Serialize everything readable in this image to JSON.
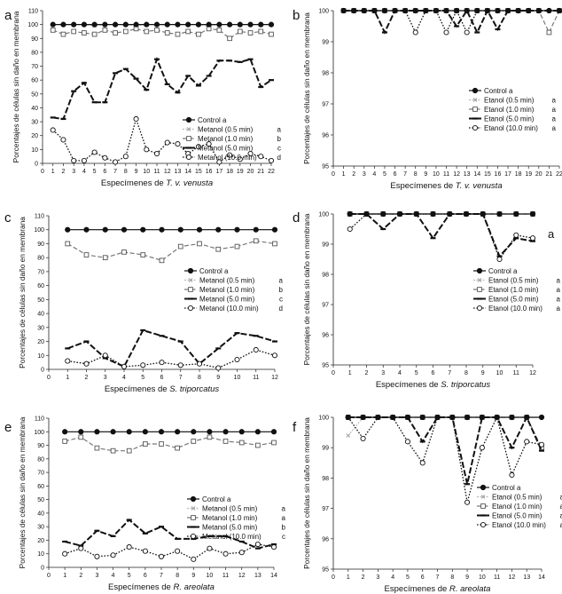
{
  "chart_data": [
    {
      "type": "line",
      "panel_label": "a",
      "ylabel": "Porcentajes de células sin daño en membrana",
      "xlabel_prefix": "Especímenes de ",
      "xlabel_species": "T. v. venusta",
      "ylim": [
        0,
        110
      ],
      "yticks": [
        0,
        10,
        20,
        30,
        40,
        50,
        60,
        70,
        80,
        90,
        100,
        110
      ],
      "xlim": [
        0,
        22
      ],
      "x": [
        1,
        2,
        3,
        4,
        5,
        6,
        7,
        8,
        9,
        10,
        11,
        12,
        13,
        14,
        15,
        16,
        17,
        18,
        19,
        20,
        21,
        22
      ],
      "legend_position": "right",
      "series": [
        {
          "name": "Control",
          "group": "a",
          "style": "control",
          "values": [
            100,
            100,
            100,
            100,
            100,
            100,
            100,
            100,
            100,
            100,
            100,
            100,
            100,
            100,
            100,
            100,
            100,
            100,
            100,
            100,
            100,
            100
          ]
        },
        {
          "name": "Metanol  (0.5 min)",
          "group": "a",
          "style": "s05",
          "values": [
            100,
            100,
            100,
            100,
            99,
            100,
            100,
            100,
            99,
            100,
            100,
            100,
            100,
            100,
            100,
            99,
            100,
            100,
            100,
            100,
            100,
            100
          ]
        },
        {
          "name": "Metanol  (1.0 min)",
          "group": "b",
          "style": "s10",
          "values": [
            96,
            93,
            95,
            94,
            93,
            96,
            94,
            95,
            97,
            95,
            96,
            94,
            93,
            95,
            93,
            97,
            96,
            90,
            95,
            94,
            95,
            93
          ]
        },
        {
          "name": "Metanol  (5.0 min)",
          "group": "c",
          "style": "s50",
          "values": [
            33,
            32,
            52,
            58,
            44,
            44,
            65,
            68,
            61,
            53,
            75,
            57,
            51,
            63,
            56,
            63,
            74,
            74,
            73,
            75,
            55,
            60
          ]
        },
        {
          "name": "Metanol  (10.0 min)",
          "group": "d",
          "style": "s100",
          "values": [
            24,
            17,
            2,
            2,
            8,
            4,
            1,
            5,
            32,
            10,
            7,
            15,
            14,
            7,
            12,
            14,
            1,
            6,
            3,
            7,
            5,
            2
          ]
        }
      ]
    },
    {
      "type": "line",
      "panel_label": "b",
      "ylabel": "Porcentajes de células sin daño en membrana",
      "xlabel_prefix": "Especímenes de ",
      "xlabel_species": "T. v. venusta",
      "ylim": [
        95,
        100
      ],
      "yticks": [
        95,
        96,
        97,
        98,
        99,
        100
      ],
      "xlim": [
        0,
        22
      ],
      "x": [
        1,
        2,
        3,
        4,
        5,
        6,
        7,
        8,
        9,
        10,
        11,
        12,
        13,
        14,
        15,
        16,
        17,
        18,
        19,
        20,
        21,
        22
      ],
      "legend_position": "right",
      "series": [
        {
          "name": "Control",
          "group": "a",
          "style": "control",
          "values": [
            100,
            100,
            100,
            100,
            100,
            100,
            100,
            100,
            100,
            100,
            100,
            100,
            100,
            100,
            100,
            100,
            100,
            100,
            100,
            100,
            100,
            100
          ]
        },
        {
          "name": "Etanol  (0.5 min)",
          "group": "a",
          "style": "s05",
          "values": [
            100,
            100,
            100,
            100,
            100,
            100,
            100,
            100,
            100,
            100,
            100,
            100,
            100,
            100,
            100,
            100,
            100,
            100,
            100,
            100,
            100,
            100
          ]
        },
        {
          "name": "Etanol  (1.0 min)",
          "group": "a",
          "style": "s10",
          "values": [
            100,
            100,
            100,
            100,
            100,
            100,
            100,
            100,
            100,
            100,
            100,
            100,
            100,
            100,
            100,
            100,
            100,
            100,
            100,
            100,
            99.3,
            100
          ]
        },
        {
          "name": "Etanol  (5.0 min)",
          "group": "a",
          "style": "s50",
          "values": [
            100,
            100,
            100,
            100,
            99.3,
            100,
            100,
            100,
            100,
            100,
            100,
            99.5,
            100,
            99.3,
            100,
            99.4,
            100,
            100,
            100,
            100,
            100,
            100
          ]
        },
        {
          "name": "Etanol  (10.0 min)",
          "group": "a",
          "style": "s100",
          "values": [
            100,
            100,
            100,
            100,
            100,
            100,
            100,
            99.3,
            100,
            100,
            99.3,
            100,
            99.3,
            100,
            100,
            100,
            100,
            100,
            100,
            100,
            100,
            100
          ]
        }
      ]
    },
    {
      "type": "line",
      "panel_label": "c",
      "ylabel": "Porcentajes de células sin daño en membrana",
      "xlabel_prefix": "Especímenes de ",
      "xlabel_species": "S. triporcatus",
      "ylim": [
        0,
        110
      ],
      "yticks": [
        0,
        10,
        20,
        30,
        40,
        50,
        60,
        70,
        80,
        90,
        100,
        110
      ],
      "xlim": [
        0,
        12
      ],
      "x": [
        1,
        2,
        3,
        4,
        5,
        6,
        7,
        8,
        9,
        10,
        11,
        12
      ],
      "legend_position": "right",
      "series": [
        {
          "name": "Control",
          "group": "a",
          "style": "control",
          "values": [
            100,
            100,
            100,
            100,
            100,
            100,
            100,
            100,
            100,
            100,
            100,
            100
          ]
        },
        {
          "name": "Metanol  (0.5 min)",
          "group": "a",
          "style": "s05",
          "values": [
            100,
            100,
            100,
            100,
            100,
            100,
            100,
            100,
            100,
            100,
            100,
            100
          ]
        },
        {
          "name": "Metanol  (1.0 min)",
          "group": "b",
          "style": "s10",
          "values": [
            90,
            82,
            80,
            84,
            82,
            78,
            88,
            90,
            86,
            88,
            92,
            90
          ]
        },
        {
          "name": "Metanol  (5.0 min)",
          "group": "c",
          "style": "s50",
          "values": [
            15,
            20,
            8,
            2,
            28,
            24,
            20,
            4,
            15,
            26,
            24,
            20
          ]
        },
        {
          "name": "Metanol  (10.0 min)",
          "group": "d",
          "style": "s100",
          "values": [
            6,
            4,
            10,
            2,
            3,
            5,
            3,
            4,
            1,
            7,
            14,
            10
          ]
        }
      ]
    },
    {
      "type": "line",
      "panel_label": "d",
      "annotation": "a",
      "ylabel": "Porcentajes de células sin daño en membrana",
      "xlabel_prefix": "Especímenes de ",
      "xlabel_species": "S. triporcatus",
      "ylim": [
        95,
        100
      ],
      "yticks": [
        95,
        96,
        97,
        98,
        99,
        100
      ],
      "xlim": [
        0,
        12
      ],
      "x": [
        1,
        2,
        3,
        4,
        5,
        6,
        7,
        8,
        9,
        10,
        11,
        12
      ],
      "legend_position": "right",
      "series": [
        {
          "name": "Control",
          "group": "a",
          "style": "control",
          "values": [
            100,
            100,
            100,
            100,
            100,
            100,
            100,
            100,
            100,
            100,
            100,
            100
          ]
        },
        {
          "name": "Etanol  (0.5 min)",
          "group": "a",
          "style": "s05",
          "values": [
            100,
            100,
            100,
            100,
            100,
            100,
            100,
            100,
            100,
            100,
            100,
            100
          ]
        },
        {
          "name": "Etanol  (1.0 min)",
          "group": "a",
          "style": "s10",
          "values": [
            100,
            100,
            100,
            100,
            100,
            100,
            100,
            100,
            100,
            100,
            100,
            100
          ]
        },
        {
          "name": "Etanol  (5.0 min)",
          "group": "a",
          "style": "s50",
          "values": [
            100,
            100,
            99.5,
            100,
            100,
            99.2,
            100,
            100,
            100,
            98.6,
            99.2,
            99.1
          ]
        },
        {
          "name": "Etanol  (10.0 min)",
          "group": "a",
          "style": "s100",
          "values": [
            99.5,
            100,
            100,
            100,
            100,
            100,
            100,
            100,
            100,
            98.5,
            99.3,
            99.2
          ]
        }
      ]
    },
    {
      "type": "line",
      "panel_label": "e",
      "ylabel": "Porcentajes de células sin daño en membrana",
      "xlabel_prefix": "Especímenes de ",
      "xlabel_species": "R. areolata",
      "ylim": [
        0,
        110
      ],
      "yticks": [
        0,
        10,
        20,
        30,
        40,
        50,
        60,
        70,
        80,
        90,
        100,
        110
      ],
      "xlim": [
        0,
        14
      ],
      "x": [
        1,
        2,
        3,
        4,
        5,
        6,
        7,
        8,
        9,
        10,
        11,
        12,
        13,
        14
      ],
      "legend_position": "right",
      "series": [
        {
          "name": "Control",
          "group": "a",
          "style": "control",
          "values": [
            100,
            100,
            100,
            100,
            100,
            100,
            100,
            100,
            100,
            100,
            100,
            100,
            100,
            100
          ]
        },
        {
          "name": "Metanol  (0.5 min)",
          "group": "a",
          "style": "s05",
          "values": [
            100,
            100,
            100,
            100,
            100,
            100,
            100,
            100,
            100,
            100,
            100,
            100,
            100,
            100
          ]
        },
        {
          "name": "Metanol  (1.0 min)",
          "group": "a",
          "style": "s10",
          "values": [
            93,
            96,
            88,
            86,
            86,
            91,
            91,
            88,
            93,
            96,
            93,
            92,
            90,
            92
          ]
        },
        {
          "name": "Metanol  (5.0 min)",
          "group": "b",
          "style": "s50",
          "values": [
            19,
            16,
            27,
            23,
            35,
            25,
            30,
            21,
            21,
            23,
            23,
            19,
            14,
            17
          ]
        },
        {
          "name": "Metanol  (10.0 min)",
          "group": "c",
          "style": "s100",
          "values": [
            10,
            14,
            8,
            9,
            15,
            12,
            8,
            12,
            6,
            14,
            10,
            11,
            17,
            15
          ]
        }
      ]
    },
    {
      "type": "line",
      "panel_label": "f",
      "ylabel": "Porcentajes de células sin daño en membrana",
      "xlabel_prefix": "Especímenes de ",
      "xlabel_species": "R. areolata",
      "ylim": [
        95,
        100
      ],
      "yticks": [
        95,
        96,
        97,
        98,
        99,
        100
      ],
      "xlim": [
        0,
        14
      ],
      "x": [
        1,
        2,
        3,
        4,
        5,
        6,
        7,
        8,
        9,
        10,
        11,
        12,
        13,
        14
      ],
      "legend_position": "right",
      "series": [
        {
          "name": "Control",
          "group": "a",
          "style": "control",
          "values": [
            100,
            100,
            100,
            100,
            100,
            100,
            100,
            100,
            100,
            100,
            100,
            100,
            100,
            100
          ]
        },
        {
          "name": "Etanol  (0.5 min)",
          "group": "a",
          "style": "s05",
          "values": [
            99.4,
            100,
            100,
            100,
            100,
            100,
            100,
            100,
            100,
            100,
            100,
            100,
            100,
            100
          ]
        },
        {
          "name": "Etanol  (1.0 min)",
          "group": "a",
          "style": "s10",
          "values": [
            100,
            100,
            100,
            100,
            100,
            100,
            100,
            100,
            100,
            100,
            100,
            100,
            100,
            99.0
          ]
        },
        {
          "name": "Etanol  (5.0 min)",
          "group": "a",
          "style": "s50",
          "values": [
            100,
            100,
            100,
            100,
            100,
            99.2,
            100,
            100,
            97.8,
            100,
            100,
            99.0,
            100,
            98.9
          ]
        },
        {
          "name": "Etanol  (10.0 min)",
          "group": "a",
          "style": "s100",
          "values": [
            100,
            99.3,
            100,
            100,
            99.2,
            98.5,
            100,
            100,
            97.2,
            99.0,
            100,
            98.1,
            99.2,
            99.1
          ]
        }
      ]
    }
  ],
  "styles": {
    "control": {
      "stroke": "#111111",
      "dash": "",
      "width": 1.2,
      "marker": "filled-circle"
    },
    "s05": {
      "stroke": "#b9b9b9",
      "dash": "2 1.5",
      "width": 1.2,
      "marker": "small-x"
    },
    "s10": {
      "stroke": "#777777",
      "dash": "5 2.5",
      "width": 1.2,
      "marker": "open-square"
    },
    "s50": {
      "stroke": "#111111",
      "dash": "7 2.5",
      "width": 2.0,
      "marker": "dash"
    },
    "s100": {
      "stroke": "#111111",
      "dash": "1.6 1.8",
      "width": 1.3,
      "marker": "open-circle"
    }
  }
}
